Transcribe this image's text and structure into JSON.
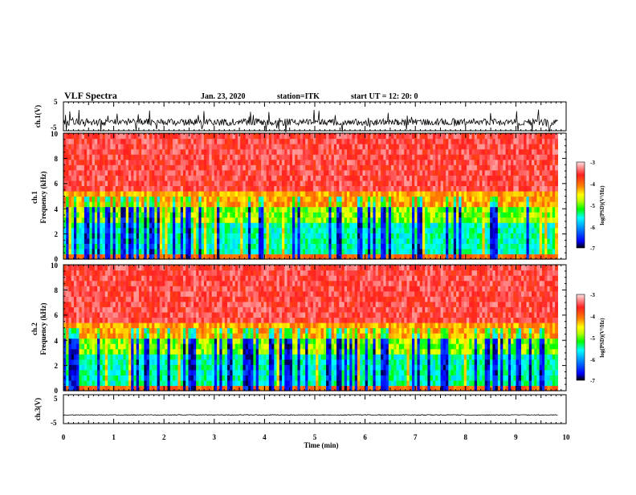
{
  "chart_data": {
    "type": "heatmap",
    "header": {
      "title": "VLF Spectra",
      "date": "Jan. 23, 2020",
      "station": "station=ITK",
      "start": "start UT = 12: 20: 0"
    },
    "xlabel": "Time (min)",
    "x_ticks": [
      "0",
      "1",
      "2",
      "3",
      "4",
      "5",
      "6",
      "7",
      "8",
      "9",
      "10"
    ],
    "xlim": [
      0,
      10
    ],
    "data_end_min": 9.83,
    "panels": [
      {
        "id": "ch1_wave",
        "kind": "waveform",
        "ylabel": "ch.1(V)",
        "y_ticks": [
          "5",
          "-5"
        ],
        "ylim": [
          -5,
          5
        ],
        "baseline": -2,
        "noise_level": "high"
      },
      {
        "id": "ch1_spec",
        "kind": "spectrogram",
        "ylabel_top": "ch.1",
        "ylabel": "Frequency (kHz)",
        "y_ticks": [
          "0",
          "2",
          "4",
          "6",
          "8",
          "10"
        ],
        "ylim": [
          0,
          10
        ]
      },
      {
        "id": "ch2_spec",
        "kind": "spectrogram",
        "ylabel_top": "ch.2",
        "ylabel": "Frequency (kHz)",
        "y_ticks": [
          "0",
          "2",
          "4",
          "6",
          "8",
          "10"
        ],
        "ylim": [
          0,
          10
        ]
      },
      {
        "id": "ch3_wave",
        "kind": "waveform",
        "ylabel": "ch.3(V)",
        "y_ticks": [
          "5",
          "-5"
        ],
        "ylim": [
          -5,
          5
        ],
        "baseline": -2,
        "noise_level": "low"
      }
    ],
    "colorbar": {
      "label": "log(PSD)(V²/Hz)",
      "ticks": [
        "-3",
        "-4",
        "-5",
        "-6",
        "-7"
      ],
      "range": [
        -7,
        -3
      ],
      "colors": [
        "#000000",
        "#0000ff",
        "#00a0ff",
        "#00ffff",
        "#00ff00",
        "#c0ff00",
        "#ffff00",
        "#ff8000",
        "#ff2020",
        "#ffe0e0"
      ]
    }
  }
}
